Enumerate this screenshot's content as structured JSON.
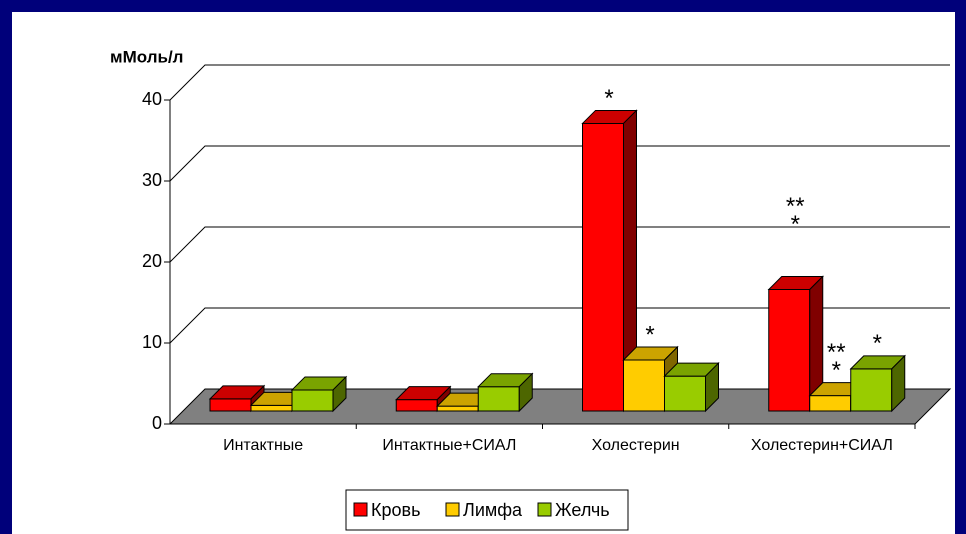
{
  "chart_data": {
    "type": "bar3d",
    "y_label": "мМоль/л",
    "categories": [
      "Интактные",
      "Интактные+СИАЛ",
      "Холестерин",
      "Холестерин+СИАЛ"
    ],
    "series": [
      {
        "name": "Кровь",
        "color": "#ff0000",
        "values": [
          1.5,
          1.4,
          35.5,
          15
        ]
      },
      {
        "name": "Лимфа",
        "color": "#ffcc00",
        "values": [
          0.7,
          0.6,
          6.3,
          1.9
        ]
      },
      {
        "name": "Желчь",
        "color": "#99cc00",
        "values": [
          2.6,
          3.0,
          4.3,
          5.2
        ]
      }
    ],
    "annotations": [
      "*",
      "*",
      "**",
      "*",
      "**",
      "*",
      "*"
    ],
    "ylim": [
      0,
      40
    ],
    "yticks": [
      0,
      10,
      20,
      30,
      40
    ],
    "grid": true,
    "legend": "bottom"
  }
}
